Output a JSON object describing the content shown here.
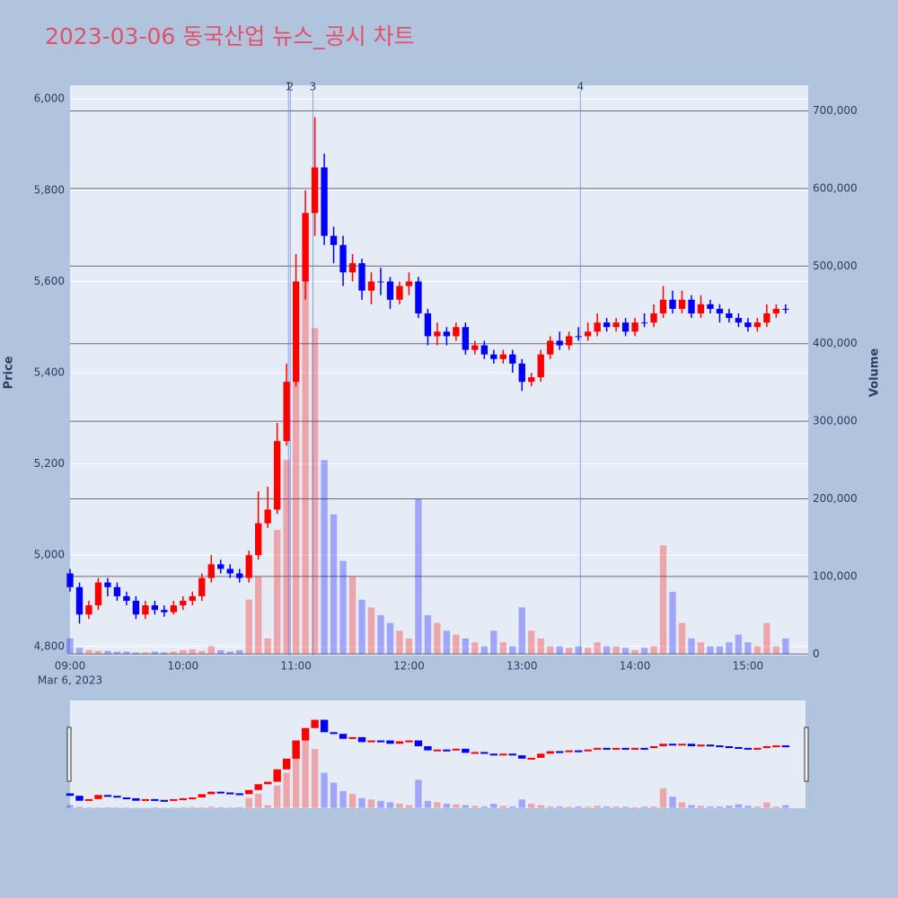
{
  "chart_data": {
    "type": "candlestick",
    "title": "2023-03-06 동국산업 뉴스_공시 차트",
    "y_title": "Price",
    "y2_title": "Volume",
    "x_date_label": "Mar 6, 2023",
    "increasing_color": "#ff0000",
    "decreasing_color": "#0000ff",
    "x": [
      "09:00",
      "09:05",
      "09:10",
      "09:15",
      "09:20",
      "09:25",
      "09:30",
      "09:35",
      "09:40",
      "09:45",
      "09:50",
      "09:55",
      "10:00",
      "10:05",
      "10:10",
      "10:15",
      "10:20",
      "10:25",
      "10:30",
      "10:35",
      "10:40",
      "10:45",
      "10:50",
      "10:55",
      "11:00",
      "11:05",
      "11:10",
      "11:15",
      "11:20",
      "11:25",
      "11:30",
      "11:35",
      "11:40",
      "11:45",
      "11:50",
      "11:55",
      "12:00",
      "12:05",
      "12:10",
      "12:15",
      "12:20",
      "12:25",
      "12:30",
      "12:35",
      "12:40",
      "12:45",
      "12:50",
      "12:55",
      "13:00",
      "13:05",
      "13:10",
      "13:15",
      "13:20",
      "13:25",
      "13:30",
      "13:35",
      "13:40",
      "13:45",
      "13:50",
      "13:55",
      "14:00",
      "14:05",
      "14:10",
      "14:15",
      "14:20",
      "14:25",
      "14:30",
      "14:35",
      "14:40",
      "14:45",
      "14:50",
      "14:55",
      "15:00",
      "15:05",
      "15:10",
      "15:15",
      "15:20"
    ],
    "open": [
      4960,
      4930,
      4870,
      4890,
      4940,
      4930,
      4910,
      4900,
      4870,
      4890,
      4880,
      4875,
      4890,
      4900,
      4910,
      4950,
      4980,
      4970,
      4960,
      4950,
      5000,
      5070,
      5100,
      5250,
      5380,
      5600,
      5750,
      5850,
      5700,
      5680,
      5620,
      5640,
      5580,
      5600,
      5600,
      5560,
      5590,
      5600,
      5530,
      5480,
      5490,
      5480,
      5500,
      5450,
      5460,
      5440,
      5430,
      5440,
      5420,
      5380,
      5390,
      5440,
      5470,
      5460,
      5480,
      5480,
      5490,
      5510,
      5500,
      5510,
      5490,
      5510,
      5510,
      5530,
      5560,
      5540,
      5560,
      5530,
      5550,
      5540,
      5530,
      5520,
      5510,
      5500,
      5510,
      5530,
      5540
    ],
    "high": [
      4970,
      4940,
      4900,
      4950,
      4950,
      4940,
      4920,
      4910,
      4900,
      4900,
      4890,
      4900,
      4910,
      4920,
      4960,
      5000,
      4990,
      4980,
      4970,
      5010,
      5140,
      5150,
      5290,
      5420,
      5660,
      5800,
      5960,
      5880,
      5720,
      5700,
      5660,
      5650,
      5620,
      5630,
      5610,
      5600,
      5620,
      5610,
      5540,
      5510,
      5500,
      5510,
      5510,
      5470,
      5470,
      5450,
      5450,
      5450,
      5430,
      5400,
      5450,
      5480,
      5490,
      5490,
      5500,
      5510,
      5530,
      5520,
      5520,
      5520,
      5520,
      5530,
      5550,
      5590,
      5580,
      5580,
      5570,
      5570,
      5560,
      5550,
      5540,
      5530,
      5520,
      5520,
      5550,
      5550,
      5550
    ],
    "low": [
      4920,
      4850,
      4860,
      4880,
      4910,
      4900,
      4890,
      4860,
      4860,
      4870,
      4865,
      4870,
      4880,
      4890,
      4900,
      4940,
      4960,
      4950,
      4940,
      4940,
      4990,
      5060,
      5090,
      5240,
      5370,
      5560,
      5700,
      5680,
      5640,
      5590,
      5600,
      5560,
      5550,
      5570,
      5540,
      5550,
      5570,
      5520,
      5460,
      5460,
      5460,
      5470,
      5440,
      5440,
      5430,
      5420,
      5420,
      5400,
      5360,
      5370,
      5380,
      5430,
      5450,
      5450,
      5470,
      5470,
      5480,
      5490,
      5490,
      5480,
      5480,
      5500,
      5500,
      5520,
      5530,
      5530,
      5520,
      5520,
      5530,
      5510,
      5510,
      5500,
      5490,
      5490,
      5500,
      5520,
      5530
    ],
    "close": [
      4930,
      4870,
      4890,
      4940,
      4930,
      4910,
      4900,
      4870,
      4890,
      4880,
      4875,
      4890,
      4900,
      4910,
      4950,
      4980,
      4970,
      4960,
      4950,
      5000,
      5070,
      5100,
      5250,
      5380,
      5600,
      5750,
      5850,
      5700,
      5680,
      5620,
      5640,
      5580,
      5600,
      5600,
      5560,
      5590,
      5600,
      5530,
      5480,
      5490,
      5480,
      5500,
      5450,
      5460,
      5440,
      5430,
      5440,
      5420,
      5380,
      5390,
      5440,
      5470,
      5460,
      5480,
      5480,
      5490,
      5510,
      5500,
      5510,
      5490,
      5510,
      5510,
      5530,
      5560,
      5540,
      5560,
      5530,
      5550,
      5540,
      5530,
      5520,
      5510,
      5500,
      5510,
      5530,
      5540,
      5540
    ],
    "volume": [
      20000,
      8000,
      5000,
      4000,
      4000,
      3000,
      3000,
      2000,
      2000,
      3000,
      2000,
      3000,
      5000,
      6000,
      4000,
      10000,
      5000,
      3000,
      5000,
      70000,
      100000,
      20000,
      160000,
      250000,
      380000,
      490000,
      420000,
      250000,
      180000,
      120000,
      100000,
      70000,
      60000,
      50000,
      40000,
      30000,
      20000,
      200000,
      50000,
      40000,
      30000,
      25000,
      20000,
      15000,
      10000,
      30000,
      15000,
      10000,
      60000,
      30000,
      20000,
      10000,
      10000,
      8000,
      10000,
      8000,
      15000,
      10000,
      10000,
      8000,
      5000,
      8000,
      10000,
      140000,
      80000,
      40000,
      20000,
      15000,
      10000,
      10000,
      15000,
      25000,
      15000,
      10000,
      40000,
      10000,
      20000
    ],
    "xlim": [
      "09:00",
      "15:32"
    ],
    "xticks": [
      "09:00",
      "10:00",
      "11:00",
      "12:00",
      "13:00",
      "14:00",
      "15:00"
    ],
    "ylim": [
      4780,
      6030
    ],
    "yticks": [
      {
        "value": 4800,
        "label": "4,800"
      },
      {
        "value": 5000,
        "label": "5,000"
      },
      {
        "value": 5200,
        "label": "5,200"
      },
      {
        "value": 5400,
        "label": "5,400"
      },
      {
        "value": 5600,
        "label": "5,600"
      },
      {
        "value": 5800,
        "label": "5,800"
      },
      {
        "value": 6000,
        "label": "6,000"
      }
    ],
    "y2lim": [
      -2000,
      733000
    ],
    "y2ticks": [
      0,
      {
        "value": 100000,
        "label": "100,000"
      },
      {
        "value": 200000,
        "label": "200,000"
      },
      {
        "value": 300000,
        "label": "300,000"
      },
      {
        "value": 400000,
        "label": "400,000"
      },
      {
        "value": 500000,
        "label": "500,000"
      },
      {
        "value": 600000,
        "label": "600,000"
      },
      {
        "value": 700000,
        "label": "700,000"
      }
    ],
    "annotations": [
      {
        "x": "10:56",
        "text": "1"
      },
      {
        "x": "10:57",
        "text": "2"
      },
      {
        "x": "11:09",
        "text": "3"
      },
      {
        "x": "13:31",
        "text": "4"
      }
    ],
    "grid": true
  }
}
